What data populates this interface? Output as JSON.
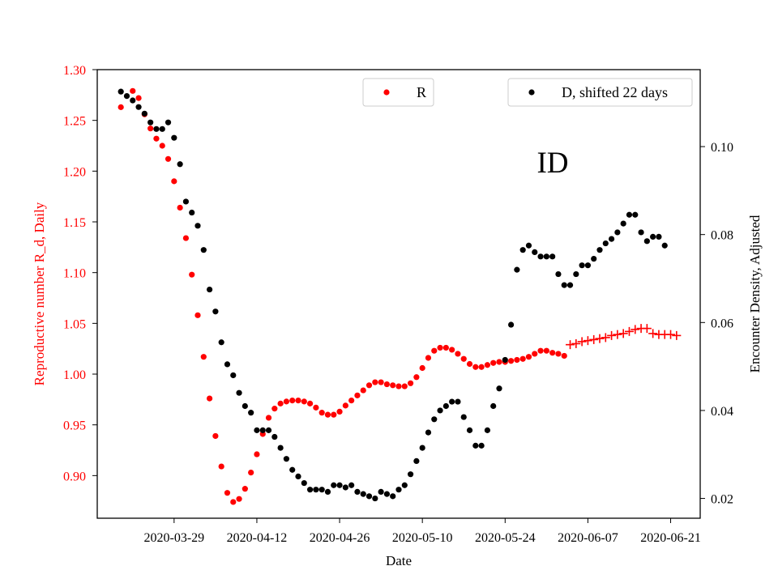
{
  "chart_data": {
    "type": "scatter",
    "title": "",
    "annotation": "ID",
    "xlabel": "Date",
    "ylabel_left": "Reproductive number R_d, Daily",
    "ylabel_right": "Encounter Density, Adjusted",
    "x_ticks": [
      "2020-03-29",
      "2020-04-12",
      "2020-04-26",
      "2020-05-10",
      "2020-05-24",
      "2020-06-07",
      "2020-06-21"
    ],
    "x_range": [
      "2020-03-16",
      "2020-06-26"
    ],
    "y_left_ticks": [
      "0.90",
      "0.95",
      "1.00",
      "1.05",
      "1.10",
      "1.15",
      "1.20",
      "1.25",
      "1.30"
    ],
    "y_left_range": [
      0.858,
      1.3
    ],
    "y_right_ticks": [
      "0.02",
      "0.04",
      "0.06",
      "0.08",
      "0.10"
    ],
    "y_right_range": [
      0.0155,
      0.1175
    ],
    "colors": {
      "r": "#ff0000",
      "d": "#000000",
      "left_axis": "#ff0000",
      "right_axis": "#000000"
    },
    "legend": [
      {
        "name": "R",
        "color": "#ff0000",
        "placement": "top-center"
      },
      {
        "name": "D, shifted 22 days",
        "color": "#000000",
        "placement": "top-right"
      }
    ],
    "series": [
      {
        "name": "R",
        "axis": "left",
        "marker": "dot",
        "points": [
          [
            "2020-03-20",
            1.263
          ],
          [
            "2020-03-22",
            1.279
          ],
          [
            "2020-03-23",
            1.272
          ],
          [
            "2020-03-24",
            1.256
          ],
          [
            "2020-03-25",
            1.242
          ],
          [
            "2020-03-26",
            1.232
          ],
          [
            "2020-03-27",
            1.225
          ],
          [
            "2020-03-28",
            1.212
          ],
          [
            "2020-03-29",
            1.19
          ],
          [
            "2020-03-30",
            1.164
          ],
          [
            "2020-03-31",
            1.134
          ],
          [
            "2020-04-01",
            1.098
          ],
          [
            "2020-04-02",
            1.058
          ],
          [
            "2020-04-03",
            1.017
          ],
          [
            "2020-04-04",
            0.976
          ],
          [
            "2020-04-05",
            0.939
          ],
          [
            "2020-04-06",
            0.909
          ],
          [
            "2020-04-07",
            0.883
          ],
          [
            "2020-04-08",
            0.874
          ],
          [
            "2020-04-09",
            0.877
          ],
          [
            "2020-04-10",
            0.887
          ],
          [
            "2020-04-11",
            0.903
          ],
          [
            "2020-04-12",
            0.921
          ],
          [
            "2020-04-13",
            0.941
          ],
          [
            "2020-04-14",
            0.957
          ],
          [
            "2020-04-15",
            0.966
          ],
          [
            "2020-04-16",
            0.971
          ],
          [
            "2020-04-17",
            0.973
          ],
          [
            "2020-04-18",
            0.974
          ],
          [
            "2020-04-19",
            0.974
          ],
          [
            "2020-04-20",
            0.973
          ],
          [
            "2020-04-21",
            0.971
          ],
          [
            "2020-04-22",
            0.967
          ],
          [
            "2020-04-23",
            0.962
          ],
          [
            "2020-04-24",
            0.96
          ],
          [
            "2020-04-25",
            0.96
          ],
          [
            "2020-04-26",
            0.963
          ],
          [
            "2020-04-27",
            0.969
          ],
          [
            "2020-04-28",
            0.974
          ],
          [
            "2020-04-29",
            0.979
          ],
          [
            "2020-04-30",
            0.984
          ],
          [
            "2020-05-01",
            0.989
          ],
          [
            "2020-05-02",
            0.992
          ],
          [
            "2020-05-03",
            0.992
          ],
          [
            "2020-05-04",
            0.99
          ],
          [
            "2020-05-05",
            0.989
          ],
          [
            "2020-05-06",
            0.988
          ],
          [
            "2020-05-07",
            0.988
          ],
          [
            "2020-05-08",
            0.991
          ],
          [
            "2020-05-09",
            0.997
          ],
          [
            "2020-05-10",
            1.006
          ],
          [
            "2020-05-11",
            1.016
          ],
          [
            "2020-05-12",
            1.023
          ],
          [
            "2020-05-13",
            1.026
          ],
          [
            "2020-05-14",
            1.026
          ],
          [
            "2020-05-15",
            1.024
          ],
          [
            "2020-05-16",
            1.02
          ],
          [
            "2020-05-17",
            1.015
          ],
          [
            "2020-05-18",
            1.01
          ],
          [
            "2020-05-19",
            1.007
          ],
          [
            "2020-05-20",
            1.007
          ],
          [
            "2020-05-21",
            1.009
          ],
          [
            "2020-05-22",
            1.011
          ],
          [
            "2020-05-23",
            1.012
          ],
          [
            "2020-05-24",
            1.012
          ],
          [
            "2020-05-25",
            1.013
          ],
          [
            "2020-05-26",
            1.014
          ],
          [
            "2020-05-27",
            1.015
          ],
          [
            "2020-05-28",
            1.017
          ],
          [
            "2020-05-29",
            1.02
          ],
          [
            "2020-05-30",
            1.023
          ],
          [
            "2020-05-31",
            1.023
          ],
          [
            "2020-06-01",
            1.021
          ],
          [
            "2020-06-02",
            1.02
          ],
          [
            "2020-06-03",
            1.018
          ]
        ]
      },
      {
        "name": "R",
        "axis": "left",
        "marker": "plus",
        "points": [
          [
            "2020-06-04",
            1.029
          ],
          [
            "2020-06-05",
            1.03
          ],
          [
            "2020-06-06",
            1.032
          ],
          [
            "2020-06-07",
            1.033
          ],
          [
            "2020-06-08",
            1.034
          ],
          [
            "2020-06-09",
            1.035
          ],
          [
            "2020-06-10",
            1.036
          ],
          [
            "2020-06-11",
            1.038
          ],
          [
            "2020-06-12",
            1.039
          ],
          [
            "2020-06-13",
            1.04
          ],
          [
            "2020-06-14",
            1.042
          ],
          [
            "2020-06-15",
            1.044
          ],
          [
            "2020-06-16",
            1.045
          ],
          [
            "2020-06-17",
            1.045
          ],
          [
            "2020-06-18",
            1.04
          ],
          [
            "2020-06-19",
            1.039
          ],
          [
            "2020-06-20",
            1.039
          ],
          [
            "2020-06-21",
            1.039
          ],
          [
            "2020-06-22",
            1.038
          ]
        ]
      },
      {
        "name": "D, shifted 22 days",
        "axis": "right",
        "marker": "dot",
        "points": [
          [
            "2020-03-20",
            0.1125
          ],
          [
            "2020-03-21",
            0.1115
          ],
          [
            "2020-03-22",
            0.1105
          ],
          [
            "2020-03-23",
            0.109
          ],
          [
            "2020-03-24",
            0.1075
          ],
          [
            "2020-03-25",
            0.1055
          ],
          [
            "2020-03-26",
            0.104
          ],
          [
            "2020-03-27",
            0.104
          ],
          [
            "2020-03-28",
            0.1055
          ],
          [
            "2020-03-29",
            0.102
          ],
          [
            "2020-03-30",
            0.096
          ],
          [
            "2020-03-31",
            0.0875
          ],
          [
            "2020-04-01",
            0.085
          ],
          [
            "2020-04-02",
            0.082
          ],
          [
            "2020-04-03",
            0.0765
          ],
          [
            "2020-04-04",
            0.0675
          ],
          [
            "2020-04-05",
            0.0625
          ],
          [
            "2020-04-06",
            0.0555
          ],
          [
            "2020-04-07",
            0.0505
          ],
          [
            "2020-04-08",
            0.048
          ],
          [
            "2020-04-09",
            0.044
          ],
          [
            "2020-04-10",
            0.041
          ],
          [
            "2020-04-11",
            0.0395
          ],
          [
            "2020-04-12",
            0.0355
          ],
          [
            "2020-04-13",
            0.0355
          ],
          [
            "2020-04-14",
            0.0355
          ],
          [
            "2020-04-15",
            0.034
          ],
          [
            "2020-04-16",
            0.0315
          ],
          [
            "2020-04-17",
            0.029
          ],
          [
            "2020-04-18",
            0.0265
          ],
          [
            "2020-04-19",
            0.025
          ],
          [
            "2020-04-20",
            0.0235
          ],
          [
            "2020-04-21",
            0.022
          ],
          [
            "2020-04-22",
            0.022
          ],
          [
            "2020-04-23",
            0.022
          ],
          [
            "2020-04-24",
            0.0215
          ],
          [
            "2020-04-25",
            0.023
          ],
          [
            "2020-04-26",
            0.023
          ],
          [
            "2020-04-27",
            0.0225
          ],
          [
            "2020-04-28",
            0.023
          ],
          [
            "2020-04-29",
            0.0215
          ],
          [
            "2020-04-30",
            0.021
          ],
          [
            "2020-05-01",
            0.0205
          ],
          [
            "2020-05-02",
            0.02
          ],
          [
            "2020-05-03",
            0.0215
          ],
          [
            "2020-05-04",
            0.021
          ],
          [
            "2020-05-05",
            0.0205
          ],
          [
            "2020-05-06",
            0.022
          ],
          [
            "2020-05-07",
            0.023
          ],
          [
            "2020-05-08",
            0.0255
          ],
          [
            "2020-05-09",
            0.0285
          ],
          [
            "2020-05-10",
            0.0315
          ],
          [
            "2020-05-11",
            0.035
          ],
          [
            "2020-05-12",
            0.038
          ],
          [
            "2020-05-13",
            0.04
          ],
          [
            "2020-05-14",
            0.041
          ],
          [
            "2020-05-15",
            0.042
          ],
          [
            "2020-05-16",
            0.042
          ],
          [
            "2020-05-17",
            0.0385
          ],
          [
            "2020-05-18",
            0.0355
          ],
          [
            "2020-05-19",
            0.032
          ],
          [
            "2020-05-20",
            0.032
          ],
          [
            "2020-05-21",
            0.0355
          ],
          [
            "2020-05-22",
            0.041
          ],
          [
            "2020-05-23",
            0.045
          ],
          [
            "2020-05-24",
            0.0515
          ],
          [
            "2020-05-25",
            0.0595
          ],
          [
            "2020-05-26",
            0.072
          ],
          [
            "2020-05-27",
            0.0765
          ],
          [
            "2020-05-28",
            0.0775
          ],
          [
            "2020-05-29",
            0.076
          ],
          [
            "2020-05-30",
            0.075
          ],
          [
            "2020-05-31",
            0.075
          ],
          [
            "2020-06-01",
            0.075
          ],
          [
            "2020-06-02",
            0.071
          ],
          [
            "2020-06-03",
            0.0685
          ],
          [
            "2020-06-04",
            0.0685
          ],
          [
            "2020-06-05",
            0.071
          ],
          [
            "2020-06-06",
            0.073
          ],
          [
            "2020-06-07",
            0.073
          ],
          [
            "2020-06-08",
            0.0745
          ],
          [
            "2020-06-09",
            0.0765
          ],
          [
            "2020-06-10",
            0.078
          ],
          [
            "2020-06-11",
            0.079
          ],
          [
            "2020-06-12",
            0.0805
          ],
          [
            "2020-06-13",
            0.0825
          ],
          [
            "2020-06-14",
            0.0845
          ],
          [
            "2020-06-15",
            0.0845
          ],
          [
            "2020-06-16",
            0.0805
          ],
          [
            "2020-06-17",
            0.0785
          ],
          [
            "2020-06-18",
            0.0795
          ],
          [
            "2020-06-19",
            0.0795
          ],
          [
            "2020-06-20",
            0.0775
          ]
        ]
      }
    ]
  }
}
